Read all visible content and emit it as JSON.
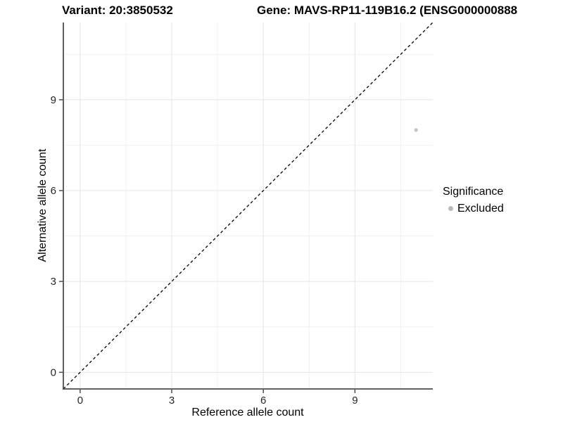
{
  "titles": {
    "variant": "Variant: 20:3850532",
    "gene": "Gene: MAVS-RP11-119B16.2 (ENSG000000888"
  },
  "legend": {
    "title": "Significance",
    "items": [
      {
        "label": "Excluded",
        "color": "#b9b9b9"
      }
    ]
  },
  "chart_data": {
    "type": "scatter",
    "xlabel": "Reference allele count",
    "ylabel": "Alternative allele count",
    "xlim": [
      -0.55,
      11.55
    ],
    "ylim": [
      -0.55,
      11.55
    ],
    "x_ticks": [
      0,
      3,
      6,
      9
    ],
    "y_ticks": [
      0,
      3,
      6,
      9
    ],
    "x_minor_ticks": [
      1.5,
      4.5,
      7.5,
      10.5
    ],
    "y_minor_ticks": [
      1.5,
      4.5,
      7.5,
      10.5
    ],
    "grid": true,
    "legend_position": "right",
    "series": [
      {
        "name": "Excluded",
        "color": "#c3c3c3",
        "points": [
          {
            "x": 11,
            "y": 8
          }
        ]
      }
    ],
    "reference_line": {
      "type": "identity",
      "style": "dashed",
      "from": [
        -0.55,
        -0.55
      ],
      "to": [
        11.55,
        11.55
      ],
      "color": "#000000"
    },
    "colors": {
      "grid_major": "#e5e5e5",
      "grid_minor": "#f1f1f1",
      "axis": "#4d4d4d",
      "tick_label": "#262626",
      "background": "#ffffff"
    }
  }
}
